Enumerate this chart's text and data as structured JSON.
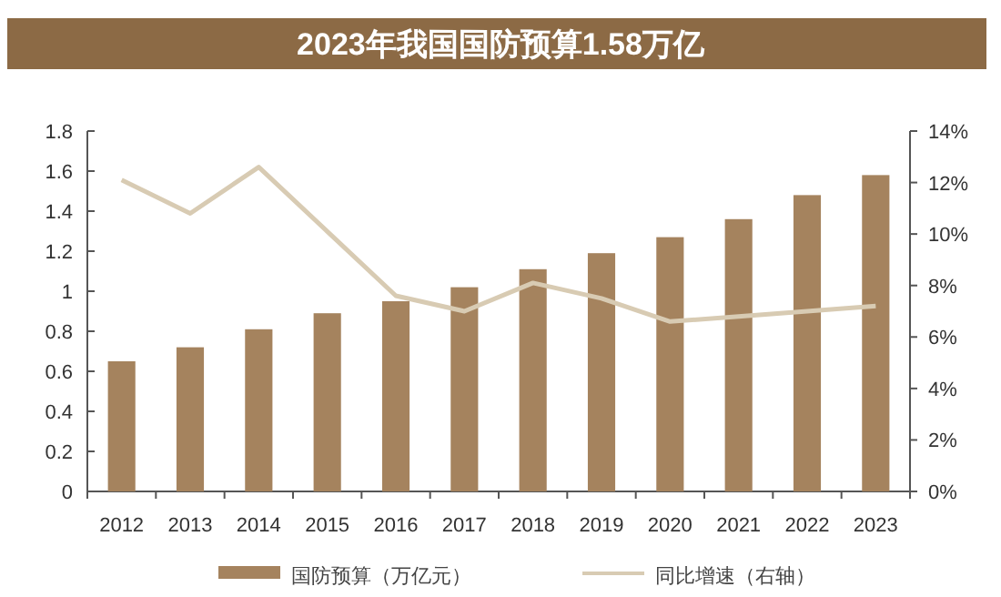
{
  "chart_data": {
    "type": "bar",
    "title": "2023年我国国防预算1.58万亿",
    "categories": [
      "2012",
      "2013",
      "2014",
      "2015",
      "2016",
      "2017",
      "2018",
      "2019",
      "2020",
      "2021",
      "2022",
      "2023"
    ],
    "series": [
      {
        "name": "国防预算（万亿元）",
        "color": "#a5835e",
        "values": [
          0.65,
          0.72,
          0.81,
          0.89,
          0.95,
          1.02,
          1.11,
          1.19,
          1.27,
          1.36,
          1.48,
          1.58
        ]
      },
      {
        "name": "同比增速（右轴）",
        "type": "line",
        "axis": "y2",
        "color": "#d8cbb3",
        "values": [
          12.1,
          10.8,
          12.6,
          10.1,
          7.6,
          7.0,
          8.1,
          7.5,
          6.6,
          6.8,
          7.0,
          7.2
        ]
      }
    ],
    "ylim": [
      0,
      1.8
    ],
    "yticks": [
      0,
      0.2,
      0.4,
      0.6,
      0.8,
      1,
      1.2,
      1.4,
      1.6,
      1.8
    ],
    "y2lim": [
      0,
      14
    ],
    "y2ticks": [
      {
        "value": 0,
        "label": "0%"
      },
      {
        "value": 2,
        "label": "2%"
      },
      {
        "value": 4,
        "label": "4%"
      },
      {
        "value": 6,
        "label": "6%"
      },
      {
        "value": 8,
        "label": "8%"
      },
      {
        "value": 10,
        "label": "10%"
      },
      {
        "value": 12,
        "label": "12%"
      },
      {
        "value": 14,
        "label": "14%"
      }
    ],
    "grid": false,
    "legend": "bottom",
    "marker": "none",
    "line_style": "solid"
  }
}
